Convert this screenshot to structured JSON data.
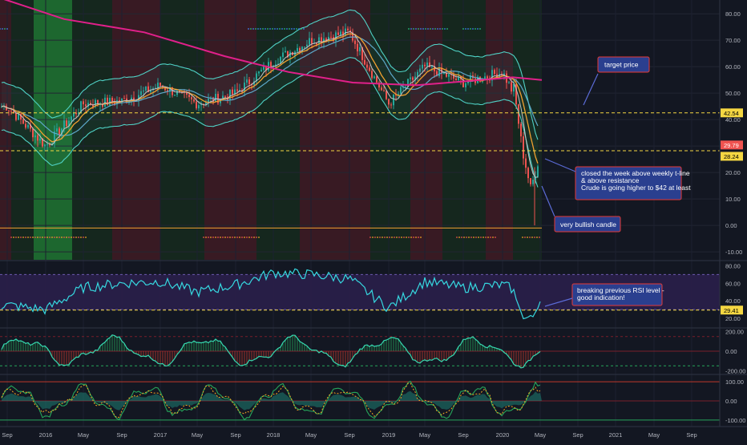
{
  "theme": {
    "background": "#131722",
    "red_zone": "#3a1a24",
    "green_zone": "#15281f",
    "bright_green_zone": "#1e6b30",
    "candle_up": "#26a69a",
    "candle_down": "#ef5350",
    "bb_color": "#4fd1c5",
    "ema_fast": "#c6c6c6",
    "ema_mid": "#f0a030",
    "ema_slow": "#5da8c9",
    "ma_long": "#e0208a",
    "level_line": "#f5d742",
    "rsi_color": "#36d8e0",
    "rsi_band": "#2a1f4a",
    "callout_bg": "#2a3f8f",
    "callout_border": "#e53935"
  },
  "x_axis_labels": [
    "Sep",
    "2016",
    "May",
    "Sep",
    "2017",
    "May",
    "Sep",
    "2018",
    "May",
    "Sep",
    "2019",
    "May",
    "Sep",
    "2020",
    "May",
    "Sep",
    "2021",
    "May",
    "Sep"
  ],
  "price_axis": {
    "ticks": [
      "80.00",
      "70.00",
      "60.00",
      "50.00",
      "40.00",
      "30.00",
      "20.00",
      "10.00",
      "0.00",
      "-10.00"
    ],
    "labels": {
      "level_high": "42.54",
      "price_red": "29.79",
      "price_yellow": "28.24"
    }
  },
  "rsi_axis": {
    "ticks": [
      "80.00",
      "60.00",
      "40.00",
      "20.00"
    ],
    "label": "29.41"
  },
  "cci_axis": {
    "ticks": [
      "200.00",
      "0.00",
      "-200.00"
    ]
  },
  "osc_axis": {
    "ticks": [
      "100.00",
      "0.00",
      "-100.00"
    ]
  },
  "annotations": {
    "target": "target price",
    "closed": [
      "closed the week above weekly t-line",
      "& above resistance",
      "Crude is going higher to $42 at least"
    ],
    "candle": "very bullish candle",
    "rsi": [
      "breaking previous RSI level -",
      "good indication!"
    ]
  },
  "chart_data": {
    "type": "candlestick",
    "title": "",
    "x": [
      "2015-09",
      "2016-01",
      "2016-05",
      "2016-09",
      "2017-01",
      "2017-05",
      "2017-09",
      "2018-01",
      "2018-05",
      "2018-09",
      "2019-01",
      "2019-05",
      "2019-09",
      "2020-01",
      "2020-05"
    ],
    "close": [
      45,
      30,
      46,
      47,
      53,
      46,
      50,
      62,
      70,
      73,
      46,
      60,
      54,
      58,
      29.8
    ],
    "ylim": [
      -13,
      84
    ],
    "levels": [
      42.54,
      28.24,
      -1
    ],
    "current_price": 29.79,
    "rsi": {
      "values": [
        35,
        30,
        55,
        60,
        62,
        50,
        58,
        72,
        70,
        65,
        32,
        62,
        55,
        58,
        41
      ],
      "level": 29.41,
      "ylim": [
        10,
        84
      ]
    },
    "cci": {
      "ylim": [
        -230,
        230
      ]
    },
    "oscillator": {
      "ylim": [
        -130,
        130
      ]
    }
  }
}
